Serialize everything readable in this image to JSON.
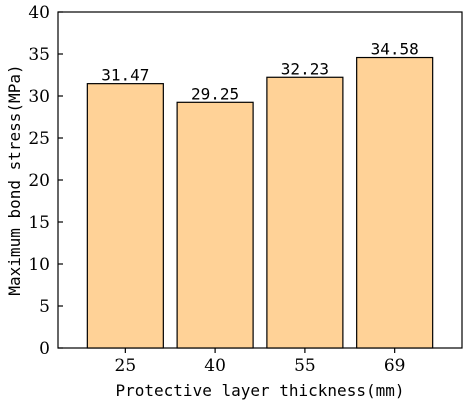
{
  "chart_data": {
    "type": "bar",
    "categories": [
      "25",
      "40",
      "55",
      "69"
    ],
    "values": [
      31.47,
      29.25,
      32.23,
      34.58
    ],
    "value_labels": [
      "31.47",
      "29.25",
      "32.23",
      "34.58"
    ],
    "xlabel": "Protective layer thickness(mm)",
    "ylabel": "Maximum bond stress(MPa)",
    "ylim": [
      0,
      40
    ],
    "yticks": [
      0,
      5,
      10,
      15,
      20,
      25,
      30,
      35,
      40
    ],
    "grid": false,
    "bar_color": "#FFD297",
    "bar_edge_color": "#000000"
  }
}
